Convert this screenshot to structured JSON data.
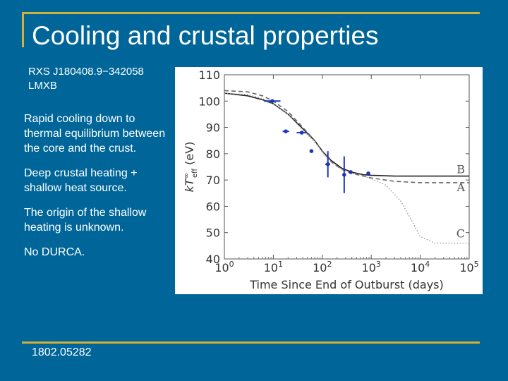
{
  "slide": {
    "title": "Cooling and crustal properties",
    "source_line1": "RXS J180408.9−342058",
    "source_line2": "LMXB",
    "notes": [
      "Rapid cooling down to thermal equilibrium between the core and the crust.",
      "Deep crustal heating + shallow heat source.",
      "The origin of the shallow heating is unknown.",
      "No DURCA."
    ],
    "reference": "1802.05282"
  },
  "colors": {
    "background": "#006699",
    "accent": "#d4b036",
    "data_points": "#1f35b5"
  },
  "chart_data": {
    "type": "line",
    "xlabel": "Time Since End of Outburst (days)",
    "ylabel": "kT^∞_eff (eV)",
    "ylabel_main": "kT",
    "ylabel_sup": "∞",
    "ylabel_sub": "eff",
    "ylabel_unit": " (eV)",
    "x_scale": "log",
    "xlim_log10": [
      0,
      5
    ],
    "ylim": [
      40,
      110
    ],
    "x_tick_exponents": [
      "0",
      "1",
      "2",
      "3",
      "4",
      "5"
    ],
    "x_tick_base": "10",
    "y_ticks": [
      40,
      50,
      60,
      70,
      80,
      90,
      100,
      110
    ],
    "series": [
      {
        "name": "B",
        "style": "solid",
        "x": [
          1,
          3,
          6,
          10,
          20,
          40,
          70,
          100,
          150,
          250,
          400,
          700,
          1000,
          3000,
          10000,
          100000
        ],
        "y": [
          103,
          102,
          100.5,
          99,
          95,
          89.5,
          85,
          81,
          77.5,
          74.5,
          73,
          72,
          71.8,
          71.5,
          71.5,
          71.5
        ]
      },
      {
        "name": "A",
        "style": "dashed",
        "x": [
          1,
          3,
          6,
          10,
          20,
          40,
          70,
          100,
          150,
          250,
          400,
          700,
          1000,
          3000,
          10000,
          100000
        ],
        "y": [
          104,
          103.5,
          102,
          100,
          96,
          90,
          85,
          81,
          77,
          74,
          72.5,
          71.5,
          70.8,
          69.5,
          69,
          69
        ]
      },
      {
        "name": "C",
        "style": "dotted",
        "x": [
          1,
          3,
          6,
          10,
          20,
          40,
          70,
          100,
          150,
          250,
          400,
          700,
          1000,
          2000,
          4000,
          7000,
          10000,
          20000,
          100000
        ],
        "y": [
          103,
          102.5,
          101,
          99,
          95,
          89,
          84.5,
          80.5,
          77,
          74,
          72.5,
          71.5,
          70.5,
          68,
          62,
          54,
          48.5,
          46,
          46
        ]
      }
    ],
    "observations": [
      {
        "x": 9.5,
        "xerr_lo": 6.5,
        "xerr_hi": 14,
        "y": 100,
        "yerr": 0
      },
      {
        "x": 18,
        "xerr_lo": 15.5,
        "xerr_hi": 21,
        "y": 88.5,
        "yerr": 0
      },
      {
        "x": 38,
        "xerr_lo": 30,
        "xerr_hi": 48,
        "y": 88,
        "yerr": 0
      },
      {
        "x": 60,
        "xerr_lo": 58,
        "xerr_hi": 62,
        "y": 81,
        "yerr": 0
      },
      {
        "x": 130,
        "xerr_lo": 115,
        "xerr_hi": 145,
        "y": 76,
        "yerr": 5
      },
      {
        "x": 280,
        "xerr_lo": 275,
        "xerr_hi": 285,
        "y": 72,
        "yerr": 7
      },
      {
        "x": 380,
        "xerr_lo": 370,
        "xerr_hi": 390,
        "y": 73,
        "yerr": 0
      },
      {
        "x": 870,
        "xerr_lo": 820,
        "xerr_hi": 920,
        "y": 72.5,
        "yerr": 0
      }
    ],
    "labels": [
      {
        "text": "B",
        "series": "B"
      },
      {
        "text": "A",
        "series": "A"
      },
      {
        "text": "C",
        "series": "C"
      }
    ]
  }
}
